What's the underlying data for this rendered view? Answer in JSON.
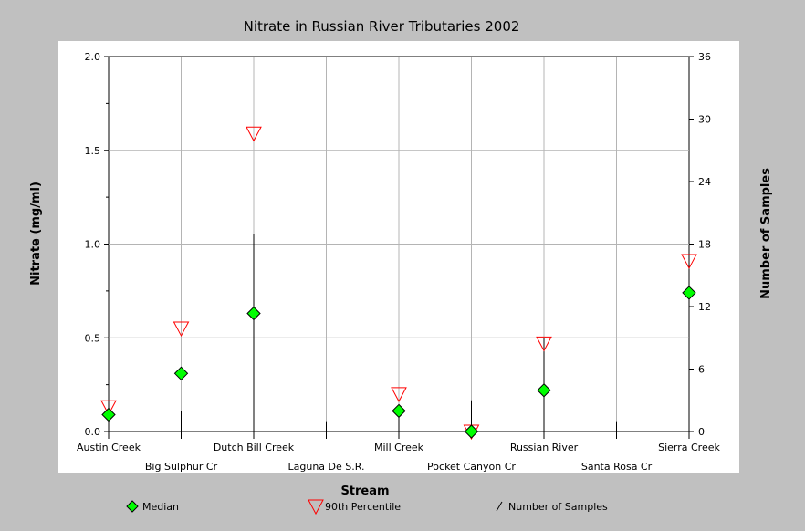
{
  "chart_data": {
    "type": "scatter",
    "title": "Nitrate in Russian River Tributaries 2002",
    "xlabel": "Stream",
    "ylabel": "Nitrate (mg/ml)",
    "y2label": "Number of Samples",
    "ylim": [
      0,
      2.0
    ],
    "y2lim": [
      0,
      36
    ],
    "yticks": [
      "0.0",
      "0.5",
      "1.0",
      "1.5",
      "2.0"
    ],
    "y2ticks": [
      "0",
      "6",
      "12",
      "18",
      "24",
      "30",
      "36"
    ],
    "categories": [
      "Austin Creek",
      "Big Sulphur Cr",
      "Dutch Bill Creek",
      "Laguna De S.R.",
      "Mill Creek",
      "Pocket Canyon Cr",
      "Russian River",
      "Santa Rosa Cr",
      "Sierra Creek"
    ],
    "series": [
      {
        "name": "Median",
        "marker": "diamond",
        "color": "#00ff00",
        "values": [
          0.09,
          0.31,
          0.63,
          null,
          0.11,
          0.0,
          0.22,
          null,
          0.74
        ]
      },
      {
        "name": "90th Percentile",
        "marker": "triangle-down-open",
        "color": "#ff0000",
        "values": [
          0.13,
          0.55,
          1.59,
          null,
          0.2,
          0.0,
          0.47,
          null,
          0.91
        ]
      },
      {
        "name": "Number of Samples",
        "marker": "vertical-line",
        "color": "#000000",
        "values": [
          1,
          2,
          19,
          1,
          2,
          3,
          9,
          1,
          1
        ]
      }
    ],
    "grid": true,
    "legend_position": "bottom"
  }
}
